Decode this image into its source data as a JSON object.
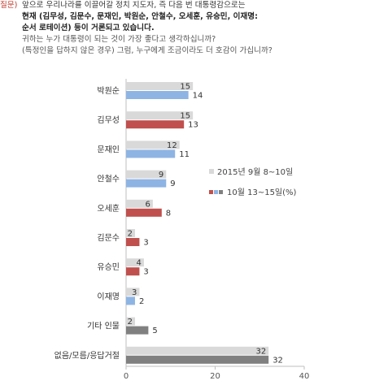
{
  "question": {
    "prefix": "질문)",
    "line1": "앞으로 우리나라를 이끌어갈 정치 지도자, 즉 다음 번 대통령감으로는",
    "line2": "현재 (김무성, 김문수, 문재인, 박원순, 안철수, 오세훈, 유승민, 이재명:",
    "line3": "순서 로테이션) 등이 거론되고 있습니다.",
    "line4": "귀하는 누가 대통령이 되는 것이 가장 좋다고 생각하십니까?",
    "line5": "(특정인을 답하지 않은 경우) 그럼, 누구에게 조금이라도 더 호감이 가십니까?"
  },
  "colors": {
    "gray_light": "#d9d9d9",
    "blue": "#8eb4e3",
    "red": "#c0504d",
    "gray_dark": "#808080",
    "axis": "#bfbfbf"
  },
  "chart_data": {
    "type": "bar",
    "orientation": "horizontal",
    "categories": [
      "박원순",
      "김무성",
      "문재인",
      "안철수",
      "오세훈",
      "김문수",
      "유승민",
      "이재명",
      "기타 인물",
      "없음/모름/응답거절"
    ],
    "series": [
      {
        "name": "2015년 9월 8~10일",
        "values": [
          15,
          15,
          12,
          9,
          6,
          2,
          4,
          3,
          2,
          32
        ]
      },
      {
        "name": "10월 13~15일(%)",
        "values": [
          14,
          13,
          11,
          9,
          8,
          3,
          3,
          2,
          5,
          32
        ]
      }
    ],
    "second_series_bar_colors": [
      "blue",
      "red",
      "blue",
      "blue",
      "red",
      "red",
      "red",
      "blue",
      "gray_dark",
      "gray_dark"
    ],
    "xlim": [
      0,
      40
    ],
    "xticks": [
      0,
      20,
      40
    ],
    "legend_position": "right-middle",
    "grid": false
  }
}
